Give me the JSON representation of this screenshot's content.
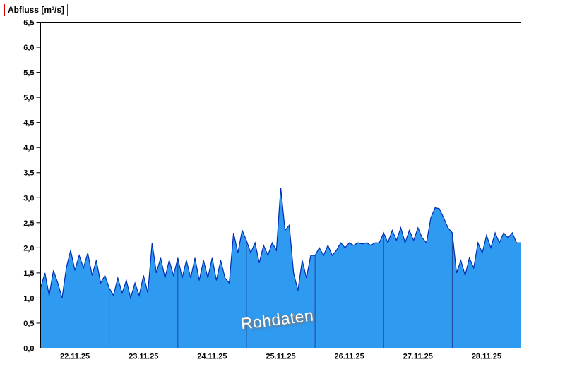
{
  "title": "Abfluss [m³/s]",
  "watermark": "Rohdaten",
  "chart_data": {
    "type": "area",
    "title": "Abfluss [m³/s]",
    "ylabel": "Abfluss [m³/s]",
    "xlabel": "",
    "ylim": [
      0,
      6.5
    ],
    "y_tick_step": 0.5,
    "y_tick_labels": [
      "0,0",
      "0,5",
      "1,0",
      "1,5",
      "2,0",
      "2,5",
      "3,0",
      "3,5",
      "4,0",
      "4,5",
      "5,0",
      "5,5",
      "6,0",
      "6,5"
    ],
    "x_labels": [
      "22.11.25",
      "23.11.25",
      "24.11.25",
      "25.11.25",
      "26.11.25",
      "27.11.25",
      "28.11.25"
    ],
    "sample_interval_hours": 1.5,
    "grid": "vertical-day-lines-clipped-to-area",
    "legend_position": "none",
    "annotations": [
      "Rohdaten"
    ],
    "colors": {
      "fill": "#2e9af0",
      "line": "#002db3",
      "grid": "#20459c",
      "axis": "#000000",
      "watermark": "#ffffff",
      "title_box": "#e00000"
    },
    "values": [
      1.2,
      1.5,
      1.05,
      1.55,
      1.3,
      1.0,
      1.6,
      1.95,
      1.55,
      1.85,
      1.6,
      1.9,
      1.45,
      1.75,
      1.3,
      1.45,
      1.2,
      1.05,
      1.4,
      1.1,
      1.35,
      1.0,
      1.3,
      1.05,
      1.45,
      1.1,
      2.1,
      1.5,
      1.8,
      1.4,
      1.75,
      1.45,
      1.8,
      1.4,
      1.75,
      1.4,
      1.8,
      1.35,
      1.75,
      1.4,
      1.8,
      1.35,
      1.75,
      1.4,
      1.3,
      2.3,
      1.9,
      2.35,
      2.15,
      1.9,
      2.1,
      1.7,
      2.05,
      1.85,
      2.1,
      1.95,
      3.2,
      2.35,
      2.45,
      1.5,
      1.15,
      1.75,
      1.4,
      1.85,
      1.85,
      2.0,
      1.85,
      2.05,
      1.85,
      1.95,
      2.1,
      2.0,
      2.1,
      2.05,
      2.1,
      2.08,
      2.1,
      2.05,
      2.1,
      2.1,
      2.3,
      2.1,
      2.35,
      2.15,
      2.4,
      2.1,
      2.35,
      2.15,
      2.4,
      2.2,
      2.1,
      2.6,
      2.8,
      2.78,
      2.6,
      2.4,
      2.3,
      1.5,
      1.75,
      1.45,
      1.8,
      1.6,
      2.1,
      1.9,
      2.25,
      2.0,
      2.3,
      2.1,
      2.3,
      2.2,
      2.3,
      2.1,
      2.1
    ]
  }
}
